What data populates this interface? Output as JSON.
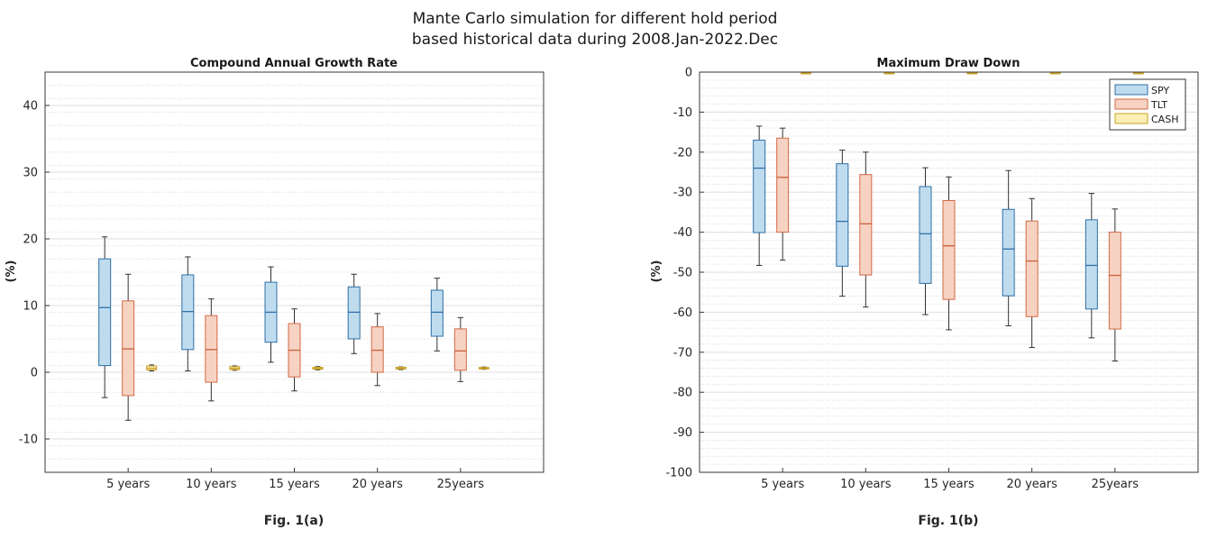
{
  "figure": {
    "title_line1": "Mante Carlo simulation for different hold period",
    "title_line2": "based historical data during 2008.Jan-2022.Dec"
  },
  "colors": {
    "SPY": {
      "fill": "#bfdcef",
      "stroke": "#2f6fa6",
      "median": "#2f6fa6"
    },
    "TLT": {
      "fill": "#f6d2c2",
      "stroke": "#d26a45",
      "median": "#c8603c"
    },
    "CASH": {
      "fill": "#fbefb6",
      "stroke": "#c9a227",
      "median": "#c9a227"
    }
  },
  "chart_data": [
    {
      "type": "box",
      "title": "Compound Annual Growth Rate",
      "caption": "Fig. 1(a)",
      "ylabel": "(%)",
      "xlabel": "",
      "ylim": [
        -15,
        45
      ],
      "yticks": [
        -10,
        0,
        10,
        20,
        30,
        40
      ],
      "grid": true,
      "legend": "none",
      "categories": [
        "5 years",
        "10 years",
        "15 years",
        "20 years",
        "25years"
      ],
      "series": [
        {
          "name": "SPY",
          "boxes": [
            {
              "min": -3.8,
              "q1": 1.0,
              "median": 9.7,
              "q3": 17.0,
              "max": 20.3
            },
            {
              "min": 0.2,
              "q1": 3.4,
              "median": 9.1,
              "q3": 14.6,
              "max": 17.3
            },
            {
              "min": 1.5,
              "q1": 4.5,
              "median": 9.0,
              "q3": 13.5,
              "max": 15.8
            },
            {
              "min": 2.8,
              "q1": 5.0,
              "median": 9.0,
              "q3": 12.8,
              "max": 14.7
            },
            {
              "min": 3.2,
              "q1": 5.4,
              "median": 9.0,
              "q3": 12.3,
              "max": 14.1
            }
          ]
        },
        {
          "name": "TLT",
          "boxes": [
            {
              "min": -7.2,
              "q1": -3.5,
              "median": 3.5,
              "q3": 10.7,
              "max": 14.7
            },
            {
              "min": -4.3,
              "q1": -1.5,
              "median": 3.4,
              "q3": 8.5,
              "max": 11.0
            },
            {
              "min": -2.8,
              "q1": -0.7,
              "median": 3.3,
              "q3": 7.3,
              "max": 9.5
            },
            {
              "min": -2.0,
              "q1": 0.0,
              "median": 3.3,
              "q3": 6.8,
              "max": 8.8
            },
            {
              "min": -1.4,
              "q1": 0.3,
              "median": 3.2,
              "q3": 6.5,
              "max": 8.2
            }
          ]
        },
        {
          "name": "CASH",
          "boxes": [
            {
              "min": 0.2,
              "q1": 0.35,
              "median": 0.6,
              "q3": 0.95,
              "max": 1.1
            },
            {
              "min": 0.3,
              "q1": 0.4,
              "median": 0.6,
              "q3": 0.85,
              "max": 0.95
            },
            {
              "min": 0.35,
              "q1": 0.45,
              "median": 0.6,
              "q3": 0.75,
              "max": 0.85
            },
            {
              "min": 0.4,
              "q1": 0.5,
              "median": 0.6,
              "q3": 0.75,
              "max": 0.8
            },
            {
              "min": 0.45,
              "q1": 0.5,
              "median": 0.6,
              "q3": 0.72,
              "max": 0.78
            }
          ]
        }
      ]
    },
    {
      "type": "box",
      "title": "Maximum Draw Down",
      "caption": "Fig. 1(b)",
      "ylabel": "(%)",
      "xlabel": "",
      "ylim": [
        -100,
        0
      ],
      "yticks": [
        -100,
        -90,
        -80,
        -70,
        -60,
        -50,
        -40,
        -30,
        -20,
        -10,
        0
      ],
      "grid": true,
      "legend": "top-right",
      "categories": [
        "5 years",
        "10 years",
        "15 years",
        "20 years",
        "25years"
      ],
      "series": [
        {
          "name": "SPY",
          "boxes": [
            {
              "min": -48.3,
              "q1": -40.1,
              "median": -24.0,
              "q3": -17.0,
              "max": -13.5
            },
            {
              "min": -56.0,
              "q1": -48.5,
              "median": -37.3,
              "q3": -22.9,
              "max": -19.5
            },
            {
              "min": -60.6,
              "q1": -52.8,
              "median": -40.4,
              "q3": -28.6,
              "max": -23.9
            },
            {
              "min": -63.4,
              "q1": -55.9,
              "median": -44.2,
              "q3": -34.3,
              "max": -24.6
            },
            {
              "min": -66.4,
              "q1": -59.2,
              "median": -48.3,
              "q3": -36.9,
              "max": -30.3
            }
          ]
        },
        {
          "name": "TLT",
          "boxes": [
            {
              "min": -47.0,
              "q1": -40.0,
              "median": -26.3,
              "q3": -16.5,
              "max": -14.0
            },
            {
              "min": -58.7,
              "q1": -50.7,
              "median": -37.9,
              "q3": -25.6,
              "max": -20.0
            },
            {
              "min": -64.4,
              "q1": -56.8,
              "median": -43.4,
              "q3": -32.1,
              "max": -26.2
            },
            {
              "min": -68.8,
              "q1": -61.1,
              "median": -47.2,
              "q3": -37.2,
              "max": -31.6
            },
            {
              "min": -72.2,
              "q1": -64.2,
              "median": -50.8,
              "q3": -40.0,
              "max": -34.2
            }
          ]
        },
        {
          "name": "CASH",
          "boxes": [
            {
              "min": -0.4,
              "q1": -0.3,
              "median": -0.2,
              "q3": -0.1,
              "max": 0.0
            },
            {
              "min": -0.4,
              "q1": -0.3,
              "median": -0.2,
              "q3": -0.1,
              "max": 0.0
            },
            {
              "min": -0.4,
              "q1": -0.3,
              "median": -0.2,
              "q3": -0.1,
              "max": 0.0
            },
            {
              "min": -0.4,
              "q1": -0.3,
              "median": -0.2,
              "q3": -0.1,
              "max": 0.0
            },
            {
              "min": -0.4,
              "q1": -0.3,
              "median": -0.2,
              "q3": -0.1,
              "max": 0.0
            }
          ]
        }
      ]
    }
  ]
}
